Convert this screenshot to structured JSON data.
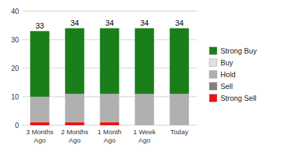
{
  "chart_data": {
    "type": "bar",
    "stacked": true,
    "categories": [
      "3 Months\nAgo",
      "2 Months\nAgo",
      "1 Month\nAgo",
      "1 Week\nAgo",
      "Today"
    ],
    "series": [
      {
        "name": "Strong Sell",
        "color": "#ee1111",
        "values": [
          1,
          1,
          1,
          0,
          0
        ]
      },
      {
        "name": "Sell",
        "color": "#808080",
        "values": [
          0,
          0,
          0,
          0,
          0
        ]
      },
      {
        "name": "Hold",
        "color": "#b0b0b0",
        "values": [
          9,
          10,
          10,
          11,
          11
        ]
      },
      {
        "name": "Buy",
        "color": "#e0e0e0",
        "values": [
          0,
          0,
          0,
          0,
          0
        ]
      },
      {
        "name": "Strong Buy",
        "color": "#1a7f1a",
        "values": [
          23,
          23,
          23,
          23,
          23
        ]
      }
    ],
    "totals": [
      33,
      34,
      34,
      34,
      34
    ],
    "ylim": [
      0,
      40
    ],
    "yticks": [
      0,
      10,
      20,
      30,
      40
    ],
    "grid": true,
    "legend": "right"
  }
}
